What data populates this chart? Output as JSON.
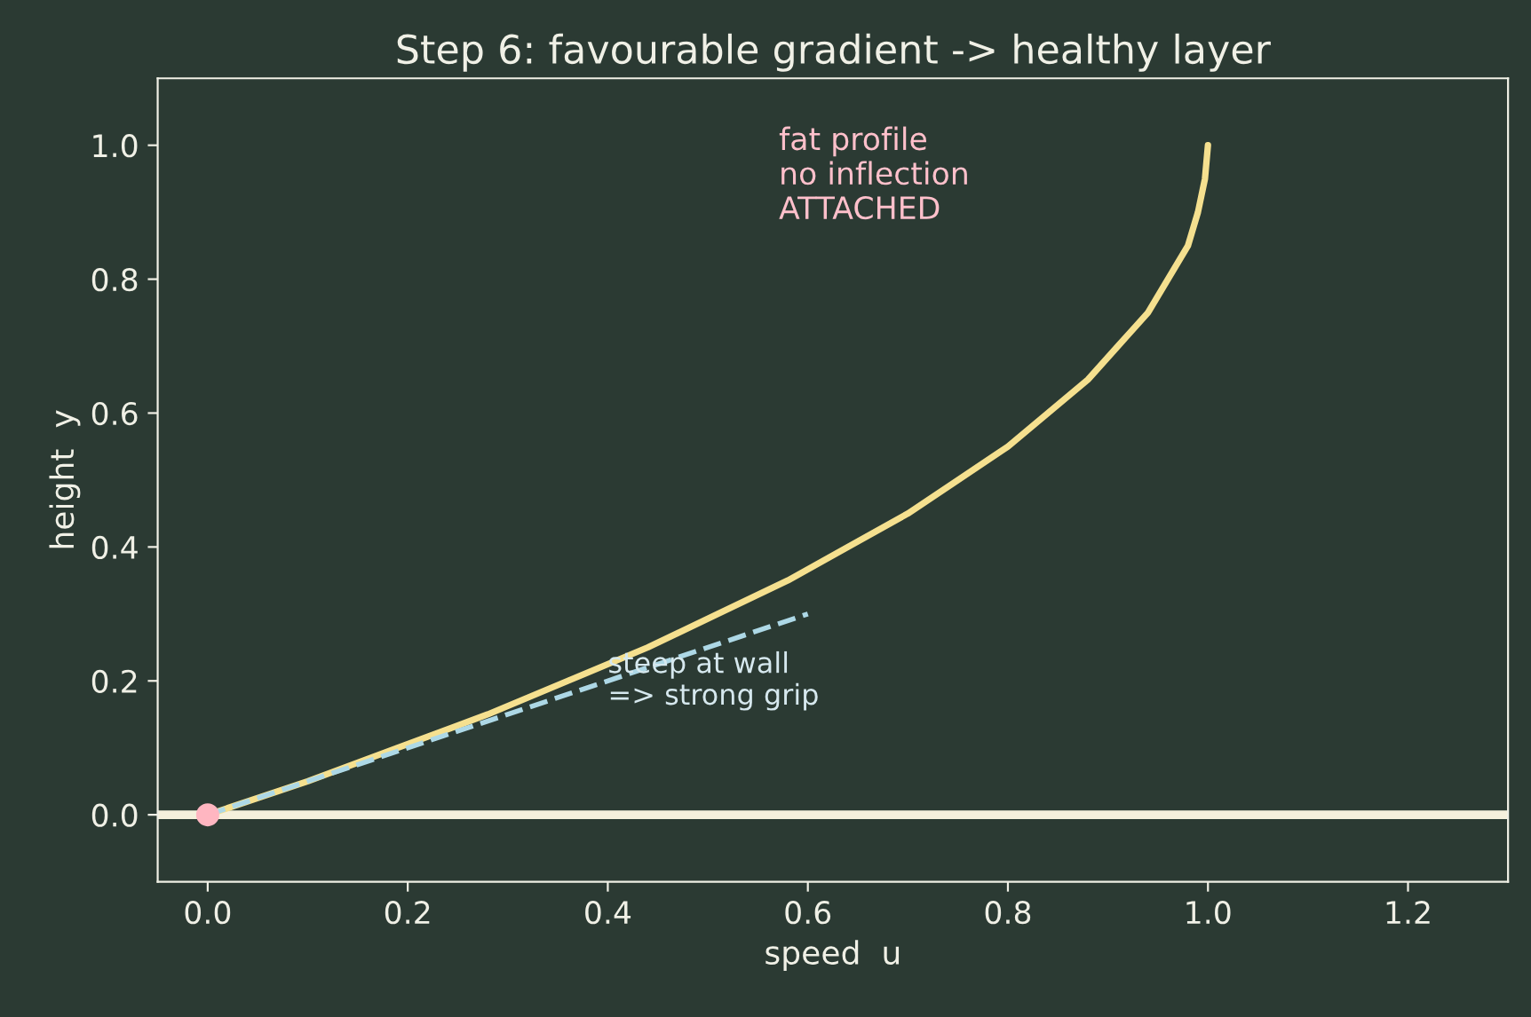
{
  "chart_data": {
    "type": "line",
    "title": "Step 6: favourable gradient -> healthy layer",
    "xlabel": "speed  u",
    "ylabel": "height  y",
    "series": [
      {
        "color": "#f5e08f",
        "x": [
          0,
          0.1,
          0.19,
          0.28,
          0.36,
          0.44,
          0.51,
          0.58,
          0.64,
          0.7,
          0.75,
          0.8,
          0.84,
          0.88,
          0.91,
          0.94,
          0.96,
          0.98,
          0.99,
          0.997,
          1
        ],
        "values": [
          0,
          0.05,
          0.1,
          0.15,
          0.2,
          0.25,
          0.3,
          0.35,
          0.4,
          0.45,
          0.5,
          0.55,
          0.6,
          0.65,
          0.7,
          0.75,
          0.8,
          0.85,
          0.9,
          0.95,
          1
        ]
      },
      {
        "color": "#add8e6",
        "line_style": "dashed",
        "x": [
          0,
          0.6
        ],
        "values": [
          0,
          0.3
        ]
      },
      {
        "type": "scatter",
        "color": "#ffb6c1",
        "x": [
          0
        ],
        "values": [
          0
        ]
      }
    ],
    "ref_lines": [
      {
        "axis": "y",
        "value": 0,
        "color": "#f5f0dc"
      }
    ],
    "annotations": [
      "fat profile\nno inflection\nATTACHED",
      {
        "text": "steep at wall\n=> strong grip",
        "x": 0.4,
        "y": 0.2
      }
    ],
    "xlim": [
      -0.05,
      1.3
    ],
    "ylim": [
      -0.1,
      1.1
    ],
    "xticks": [
      {
        "value": 0,
        "label": "0.0"
      },
      0.2,
      0.4,
      0.6,
      0.8,
      {
        "value": 1,
        "label": "1.0"
      },
      1.2
    ],
    "yticks": [
      {
        "value": 0,
        "label": "0.0"
      },
      0.2,
      0.4,
      0.6,
      0.8,
      {
        "value": 1,
        "label": "1.0"
      }
    ]
  }
}
